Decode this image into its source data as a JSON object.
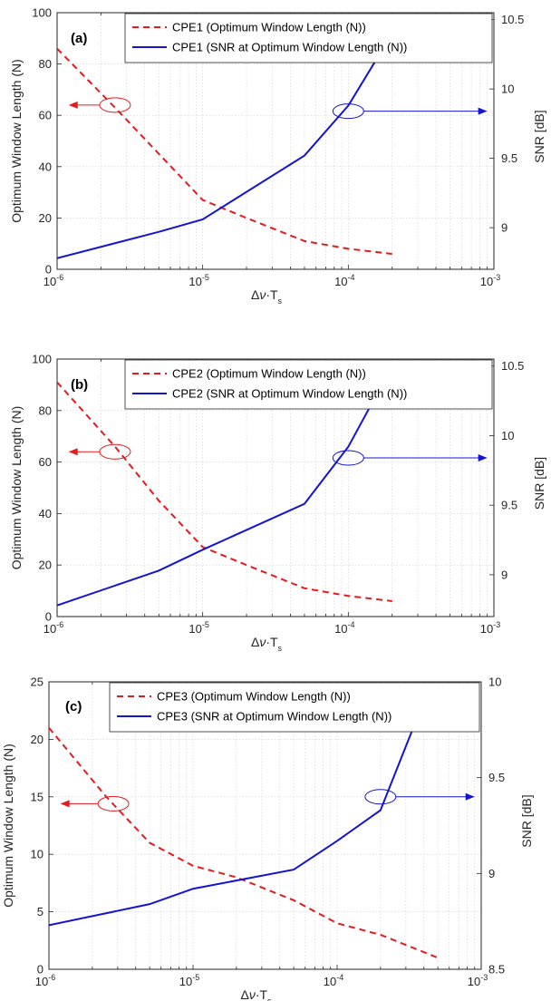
{
  "chart_data": [
    {
      "type": "line",
      "panel_label": "(a)",
      "xlabel_parts": [
        "Δ",
        "ν",
        "·T",
        "s"
      ],
      "ylabel_left": "Optimum Window Length (N)",
      "ylabel_right": "SNR [dB]",
      "xscale": "log",
      "xlim": [
        1e-06,
        0.001
      ],
      "ylim_left": [
        0,
        100
      ],
      "ylim_right": [
        8.7,
        10.55
      ],
      "x_ticks": [
        {
          "base": "10",
          "exp": "-6"
        },
        {
          "base": "10",
          "exp": "-5"
        },
        {
          "base": "10",
          "exp": "-4"
        },
        {
          "base": "10",
          "exp": "-3"
        }
      ],
      "y_ticks_left": [
        "0",
        "20",
        "40",
        "60",
        "80",
        "100"
      ],
      "y_ticks_right": [
        "9",
        "9.5",
        "10",
        "10.5"
      ],
      "grid": true,
      "legend_position": "top-right",
      "series": [
        {
          "name": "CPE1 (Optimum Window Length (N))",
          "axis": "left",
          "style": "dashed",
          "color": "#e8191d",
          "x": [
            1e-06,
            2.5e-06,
            5e-06,
            1e-05,
            2e-05,
            5e-05,
            0.0001,
            0.0002
          ],
          "y": [
            86,
            63,
            45,
            27,
            20,
            11,
            8,
            6
          ]
        },
        {
          "name": "CPE1 (SNR at Optimum Window Length (N))",
          "axis": "right",
          "style": "solid",
          "color": "#1414d2",
          "x": [
            1e-06,
            5e-06,
            1e-05,
            5e-05,
            0.0001,
            0.0002
          ],
          "y": [
            8.78,
            8.97,
            9.06,
            9.52,
            9.88,
            10.4
          ]
        }
      ],
      "annotations": [
        {
          "kind": "left-arrow",
          "ellipse_x": 2.5e-06,
          "ellipse_y": 64,
          "arrow_to_x": 1.2e-06,
          "axis": "left",
          "color": "#e8191d"
        },
        {
          "kind": "right-arrow",
          "ellipse_x": 0.0001,
          "ellipse_y": 9.84,
          "arrow_to_x": 0.0009,
          "axis": "right",
          "color": "#1414d2"
        }
      ]
    },
    {
      "type": "line",
      "panel_label": "(b)",
      "xlabel_parts": [
        "Δ",
        "ν",
        "·T",
        "s"
      ],
      "ylabel_left": "Optimum Window Length (N)",
      "ylabel_right": "SNR [dB]",
      "xscale": "log",
      "xlim": [
        1e-06,
        0.001
      ],
      "ylim_left": [
        0,
        100
      ],
      "ylim_right": [
        8.7,
        10.55
      ],
      "x_ticks": [
        {
          "base": "10",
          "exp": "-6"
        },
        {
          "base": "10",
          "exp": "-5"
        },
        {
          "base": "10",
          "exp": "-4"
        },
        {
          "base": "10",
          "exp": "-3"
        }
      ],
      "y_ticks_left": [
        "0",
        "20",
        "40",
        "60",
        "80",
        "100"
      ],
      "y_ticks_right": [
        "9",
        "9.5",
        "10",
        "10.5"
      ],
      "grid": true,
      "legend_position": "top-right",
      "series": [
        {
          "name": "CPE2 (Optimum Window Length (N))",
          "axis": "left",
          "style": "dashed",
          "color": "#e8191d",
          "x": [
            1e-06,
            2.5e-06,
            5e-06,
            1e-05,
            2e-05,
            5e-05,
            0.0001,
            0.0002
          ],
          "y": [
            91,
            66,
            45,
            27,
            20,
            11,
            8,
            6
          ]
        },
        {
          "name": "CPE2 (SNR at Optimum Window Length (N))",
          "axis": "right",
          "style": "solid",
          "color": "#1414d2",
          "x": [
            1e-06,
            5e-06,
            1e-05,
            5e-05,
            0.0001,
            0.0002
          ],
          "y": [
            8.78,
            9.03,
            9.18,
            9.51,
            9.92,
            10.5
          ]
        }
      ],
      "annotations": [
        {
          "kind": "left-arrow",
          "ellipse_x": 2.5e-06,
          "ellipse_y": 64,
          "arrow_to_x": 1.2e-06,
          "axis": "left",
          "color": "#e8191d"
        },
        {
          "kind": "right-arrow",
          "ellipse_x": 0.0001,
          "ellipse_y": 9.84,
          "arrow_to_x": 0.0009,
          "axis": "right",
          "color": "#1414d2"
        }
      ]
    },
    {
      "type": "line",
      "panel_label": "(c)",
      "xlabel_parts": [
        "Δ",
        "ν",
        "·T",
        "s"
      ],
      "ylabel_left": "Optimum Window Length (N)",
      "ylabel_right": "SNR [dB]",
      "xscale": "log",
      "xlim": [
        1e-06,
        0.001
      ],
      "ylim_left": [
        0,
        25
      ],
      "ylim_right": [
        8.5,
        10
      ],
      "x_ticks": [
        {
          "base": "10",
          "exp": "-6"
        },
        {
          "base": "10",
          "exp": "-5"
        },
        {
          "base": "10",
          "exp": "-4"
        },
        {
          "base": "10",
          "exp": "-3"
        }
      ],
      "y_ticks_left": [
        "0",
        "5",
        "10",
        "15",
        "20",
        "25"
      ],
      "y_ticks_right": [
        "8.5",
        "9",
        "9.5",
        "10"
      ],
      "grid": true,
      "legend_position": "top-right",
      "series": [
        {
          "name": "CPE3 (Optimum Window Length (N))",
          "axis": "left",
          "style": "dashed",
          "color": "#e8191d",
          "x": [
            1e-06,
            2.5e-06,
            5e-06,
            1e-05,
            2e-05,
            5e-05,
            0.0001,
            0.0002,
            0.0005
          ],
          "y": [
            21,
            15,
            11,
            9,
            8,
            6,
            4,
            3,
            1
          ]
        },
        {
          "name": "CPE3 (SNR at Optimum Window Length (N))",
          "axis": "right",
          "style": "solid",
          "color": "#1414d2",
          "x": [
            1e-06,
            5e-06,
            1e-05,
            5e-05,
            0.0001,
            0.0002,
            0.0004
          ],
          "y": [
            8.73,
            8.84,
            8.92,
            9.02,
            9.17,
            9.33,
            9.9
          ]
        }
      ],
      "annotations": [
        {
          "kind": "left-arrow",
          "ellipse_x": 2.8e-06,
          "ellipse_y": 14.4,
          "arrow_to_x": 1.2e-06,
          "axis": "left",
          "color": "#e8191d"
        },
        {
          "kind": "right-arrow",
          "ellipse_x": 0.0002,
          "ellipse_y": 9.4,
          "arrow_to_x": 0.0009,
          "axis": "right",
          "color": "#1414d2"
        }
      ]
    }
  ]
}
